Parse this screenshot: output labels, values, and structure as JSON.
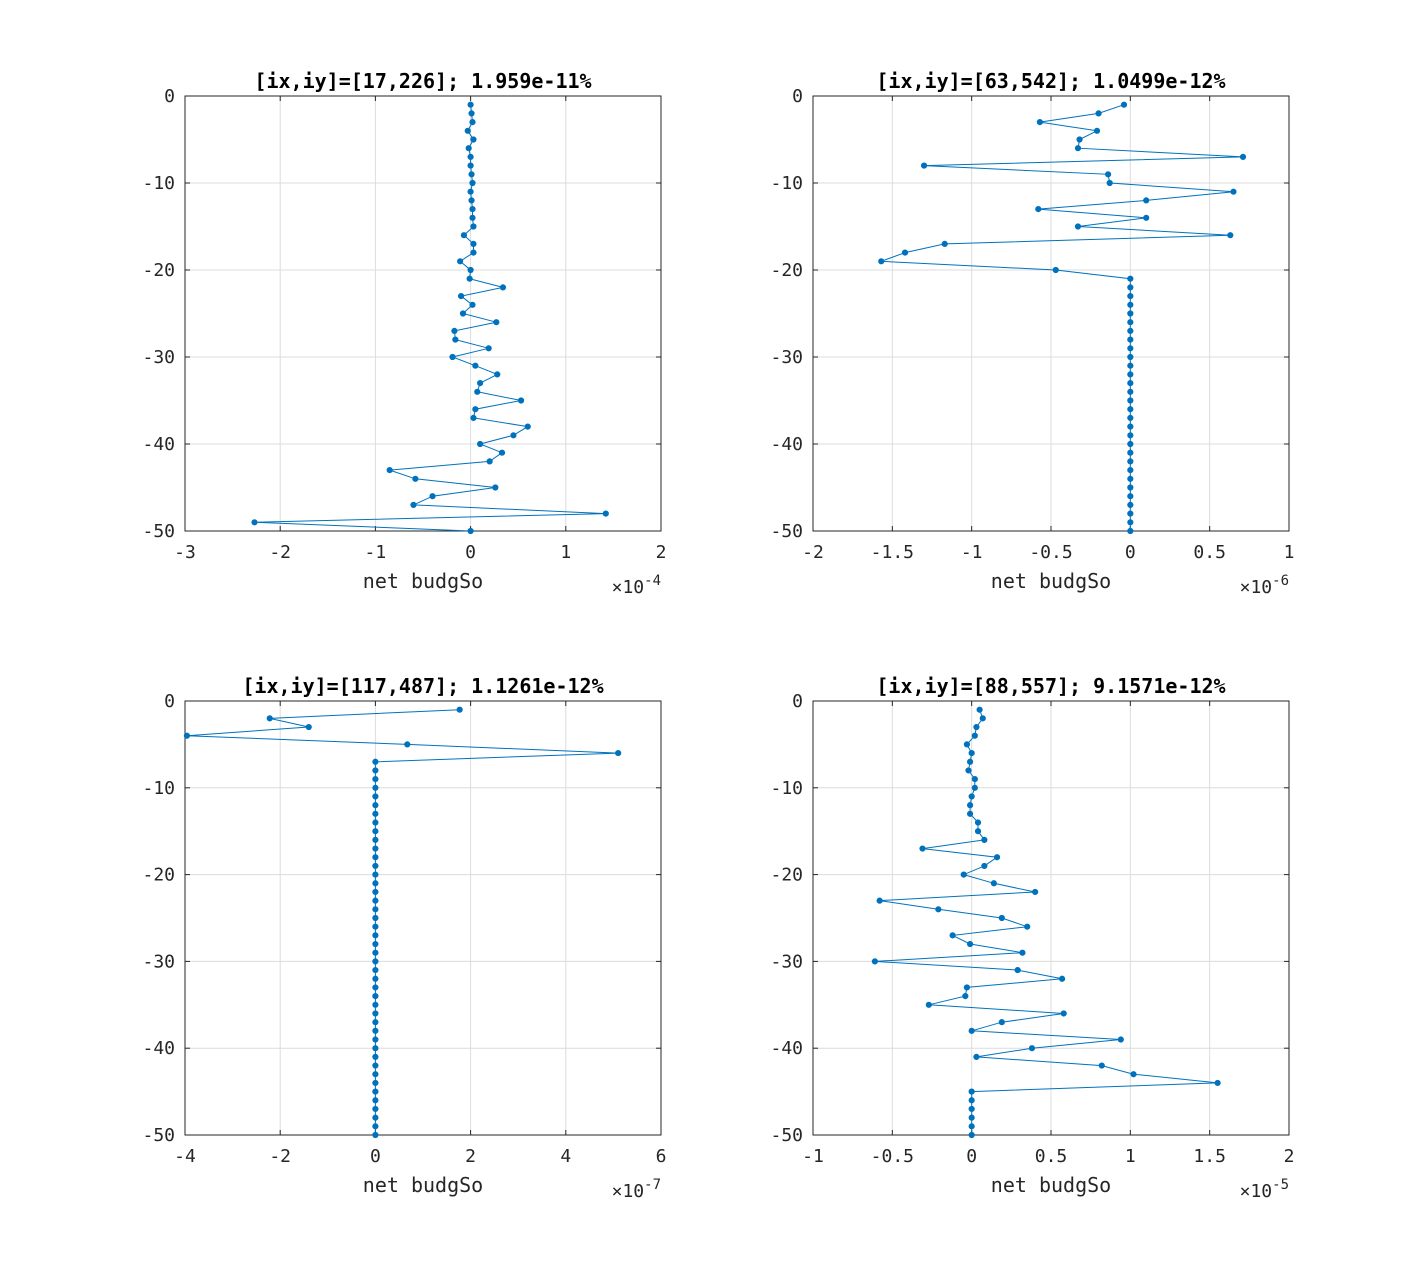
{
  "figure": {
    "line_color": "#0072BD"
  },
  "chart_data": [
    {
      "type": "line",
      "title": "[ix,iy]=[17,226]; 1.959e-11%",
      "xlabel": "net budgSo",
      "ylabel": "",
      "x_multiplier": "×10^-4",
      "x_multiplier_base": "×10",
      "x_multiplier_exp": "-4",
      "xlim": [
        -3,
        2
      ],
      "ylim": [
        -50,
        0
      ],
      "xticks": [
        -3,
        -2,
        -1,
        0,
        1,
        2
      ],
      "xtick_labels": [
        "-3",
        "-2",
        "-1",
        "0",
        "1",
        "2"
      ],
      "yticks": [
        0,
        -10,
        -20,
        -30,
        -40,
        -50
      ],
      "ytick_labels": [
        "0",
        "-10",
        "-20",
        "-30",
        "-40",
        "-50"
      ],
      "grid": true,
      "series": [
        {
          "y": [
            -1,
            -2,
            -3,
            -4,
            -5,
            -6,
            -7,
            -8,
            -9,
            -10,
            -11,
            -12,
            -13,
            -14,
            -15,
            -16,
            -17,
            -18,
            -19,
            -20,
            -21,
            -22,
            -23,
            -24,
            -25,
            -26,
            -27,
            -28,
            -29,
            -30,
            -31,
            -32,
            -33,
            -34,
            -35,
            -36,
            -37,
            -38,
            -39,
            -40,
            -41,
            -42,
            -43,
            -44,
            -45,
            -46,
            -47,
            -48,
            -49,
            -50
          ],
          "x": [
            0.0,
            0.01,
            0.02,
            -0.03,
            0.03,
            -0.02,
            0.0,
            0.0,
            0.01,
            0.02,
            0.0,
            0.01,
            0.02,
            0.02,
            0.03,
            -0.07,
            0.03,
            0.03,
            -0.11,
            0.0,
            -0.01,
            0.34,
            -0.1,
            0.02,
            -0.08,
            0.27,
            -0.17,
            -0.16,
            0.19,
            -0.19,
            0.05,
            0.28,
            0.1,
            0.07,
            0.53,
            0.05,
            0.03,
            0.6,
            0.45,
            0.1,
            0.33,
            0.2,
            -0.85,
            -0.58,
            0.26,
            -0.4,
            -0.6,
            1.42,
            -2.27,
            0.0
          ]
        }
      ]
    },
    {
      "type": "line",
      "title": "[ix,iy]=[63,542]; 1.0499e-12%",
      "xlabel": "net budgSo",
      "ylabel": "",
      "x_multiplier": "×10^-6",
      "x_multiplier_base": "×10",
      "x_multiplier_exp": "-6",
      "xlim": [
        -2,
        1
      ],
      "ylim": [
        -50,
        0
      ],
      "xticks": [
        -2,
        -1.5,
        -1,
        -0.5,
        0,
        0.5,
        1
      ],
      "xtick_labels": [
        "-2",
        "-1.5",
        "-1",
        "-0.5",
        "0",
        "0.5",
        "1"
      ],
      "yticks": [
        0,
        -10,
        -20,
        -30,
        -40,
        -50
      ],
      "ytick_labels": [
        "0",
        "-10",
        "-20",
        "-30",
        "-40",
        "-50"
      ],
      "grid": true,
      "series": [
        {
          "y": [
            -1,
            -2,
            -3,
            -4,
            -5,
            -6,
            -7,
            -8,
            -9,
            -10,
            -11,
            -12,
            -13,
            -14,
            -15,
            -16,
            -17,
            -18,
            -19,
            -20,
            -21,
            -22,
            -23,
            -24,
            -25,
            -26,
            -27,
            -28,
            -29,
            -30,
            -31,
            -32,
            -33,
            -34,
            -35,
            -36,
            -37,
            -38,
            -39,
            -40,
            -41,
            -42,
            -43,
            -44,
            -45,
            -46,
            -47,
            -48,
            -49,
            -50
          ],
          "x": [
            -0.04,
            -0.2,
            -0.57,
            -0.21,
            -0.32,
            -0.33,
            0.71,
            -1.3,
            -0.14,
            -0.13,
            0.65,
            0.1,
            -0.58,
            0.1,
            -0.33,
            0.63,
            -1.17,
            -1.42,
            -1.57,
            -0.47,
            0,
            0,
            0,
            0,
            0,
            0,
            0,
            0,
            0,
            0,
            0,
            0,
            0,
            0,
            0,
            0,
            0,
            0,
            0,
            0,
            0,
            0,
            0,
            0,
            0,
            0,
            0,
            0,
            0,
            0
          ]
        }
      ]
    },
    {
      "type": "line",
      "title": "[ix,iy]=[117,487]; 1.1261e-12%",
      "xlabel": "net budgSo",
      "ylabel": "",
      "x_multiplier": "×10^-7",
      "x_multiplier_base": "×10",
      "x_multiplier_exp": "-7",
      "xlim": [
        -4,
        6
      ],
      "ylim": [
        -50,
        0
      ],
      "xticks": [
        -4,
        -2,
        0,
        2,
        4,
        6
      ],
      "xtick_labels": [
        "-4",
        "-2",
        "0",
        "2",
        "4",
        "6"
      ],
      "yticks": [
        0,
        -10,
        -20,
        -30,
        -40,
        -50
      ],
      "ytick_labels": [
        "0",
        "-10",
        "-20",
        "-30",
        "-40",
        "-50"
      ],
      "grid": true,
      "series": [
        {
          "y": [
            -1,
            -2,
            -3,
            -4,
            -5,
            -6,
            -7,
            -8,
            -9,
            -10,
            -11,
            -12,
            -13,
            -14,
            -15,
            -16,
            -17,
            -18,
            -19,
            -20,
            -21,
            -22,
            -23,
            -24,
            -25,
            -26,
            -27,
            -28,
            -29,
            -30,
            -31,
            -32,
            -33,
            -34,
            -35,
            -36,
            -37,
            -38,
            -39,
            -40,
            -41,
            -42,
            -43,
            -44,
            -45,
            -46,
            -47,
            -48,
            -49,
            -50
          ],
          "x": [
            1.77,
            -2.22,
            -1.4,
            -3.96,
            0.67,
            5.1,
            0,
            0,
            0,
            0,
            0,
            0,
            0,
            0,
            0,
            0,
            0,
            0,
            0,
            0,
            0,
            0,
            0,
            0,
            0,
            0,
            0,
            0,
            0,
            0,
            0,
            0,
            0,
            0,
            0,
            0,
            0,
            0,
            0,
            0,
            0,
            0,
            0,
            0,
            0,
            0,
            0,
            0,
            0,
            0
          ]
        }
      ]
    },
    {
      "type": "line",
      "title": "[ix,iy]=[88,557]; 9.1571e-12%",
      "xlabel": "net budgSo",
      "ylabel": "",
      "x_multiplier": "×10^-5",
      "x_multiplier_base": "×10",
      "x_multiplier_exp": "-5",
      "xlim": [
        -1,
        2
      ],
      "ylim": [
        -50,
        0
      ],
      "xticks": [
        -1,
        -0.5,
        0,
        0.5,
        1,
        1.5,
        2
      ],
      "xtick_labels": [
        "-1",
        "-0.5",
        "0",
        "0.5",
        "1",
        "1.5",
        "2"
      ],
      "yticks": [
        0,
        -10,
        -20,
        -30,
        -40,
        -50
      ],
      "ytick_labels": [
        "0",
        "-10",
        "-20",
        "-30",
        "-40",
        "-50"
      ],
      "grid": true,
      "series": [
        {
          "y": [
            -1,
            -2,
            -3,
            -4,
            -5,
            -6,
            -7,
            -8,
            -9,
            -10,
            -11,
            -12,
            -13,
            -14,
            -15,
            -16,
            -17,
            -18,
            -19,
            -20,
            -21,
            -22,
            -23,
            -24,
            -25,
            -26,
            -27,
            -28,
            -29,
            -30,
            -31,
            -32,
            -33,
            -34,
            -35,
            -36,
            -37,
            -38,
            -39,
            -40,
            -41,
            -42,
            -43,
            -44,
            -45,
            -46,
            -47,
            -48,
            -49,
            -50
          ],
          "x": [
            0.05,
            0.07,
            0.03,
            0.02,
            -0.03,
            0.0,
            -0.01,
            -0.02,
            0.02,
            0.02,
            0.0,
            -0.01,
            -0.01,
            0.04,
            0.04,
            0.08,
            -0.31,
            0.16,
            0.08,
            -0.05,
            0.14,
            0.4,
            -0.58,
            -0.21,
            0.19,
            0.35,
            -0.12,
            -0.01,
            0.32,
            -0.61,
            0.29,
            0.57,
            -0.03,
            -0.04,
            -0.27,
            0.58,
            0.19,
            0.0,
            0.94,
            0.38,
            0.03,
            0.82,
            1.02,
            1.55,
            0.0,
            0.0,
            0.0,
            0.0,
            0.0,
            0.0
          ]
        }
      ]
    }
  ]
}
